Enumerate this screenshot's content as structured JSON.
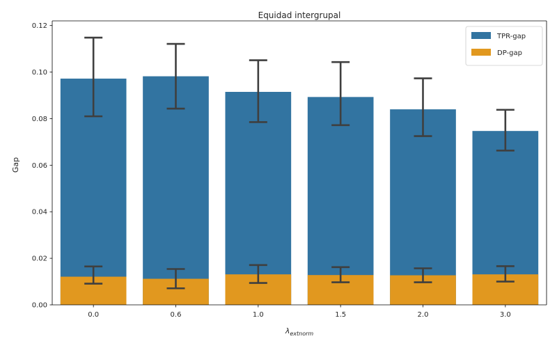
{
  "chart_data": {
    "type": "bar",
    "title": "Equidad intergrupal",
    "xlabel_symbol": "λ",
    "xlabel_subscript": "extnorm",
    "ylabel": "Gap",
    "categories": [
      "0.0",
      "0.6",
      "1.0",
      "1.5",
      "2.0",
      "3.0"
    ],
    "ylim": [
      0,
      0.122
    ],
    "yticks": [
      "0.00",
      "0.02",
      "0.04",
      "0.06",
      "0.08",
      "0.10",
      "0.12"
    ],
    "grid": false,
    "legend_position": "top-right",
    "series": [
      {
        "name": "TPR-gap",
        "color": "#3274a1",
        "values": [
          0.0972,
          0.0982,
          0.0915,
          0.0893,
          0.084,
          0.0747
        ],
        "error_low": [
          0.081,
          0.0843,
          0.0785,
          0.0772,
          0.0725,
          0.0663
        ],
        "error_high": [
          0.1148,
          0.1121,
          0.1051,
          0.1043,
          0.0973,
          0.0838
        ]
      },
      {
        "name": "DP-gap",
        "color": "#e1981f",
        "values": [
          0.0121,
          0.0112,
          0.0131,
          0.0128,
          0.0127,
          0.0131
        ],
        "error_low": [
          0.0091,
          0.0071,
          0.0094,
          0.0097,
          0.0097,
          0.01
        ],
        "error_high": [
          0.0165,
          0.0154,
          0.0171,
          0.0162,
          0.0157,
          0.0166
        ]
      }
    ],
    "error_bar_color": "#3f3f3f"
  }
}
